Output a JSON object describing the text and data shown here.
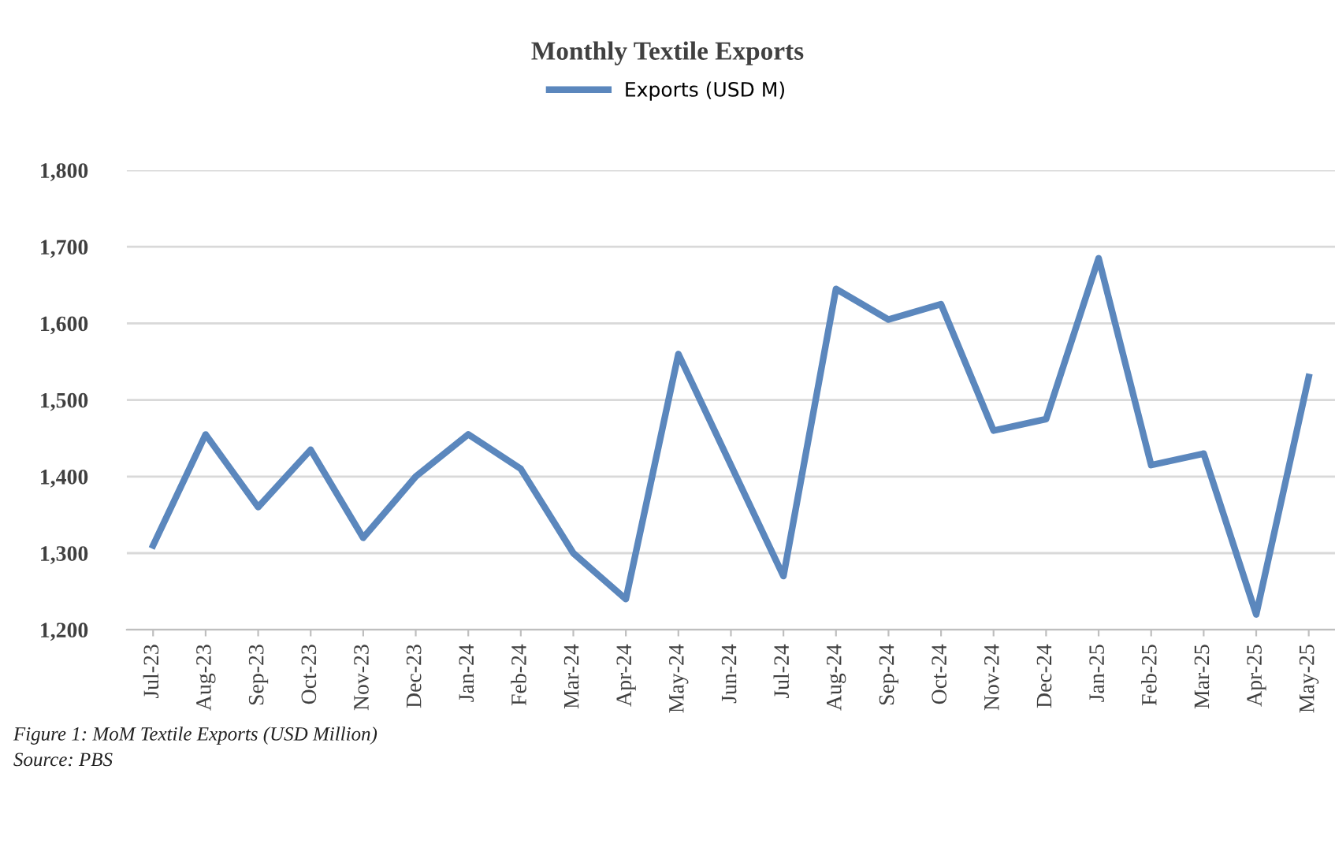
{
  "chart_data": {
    "type": "line",
    "title": "Monthly Textile Exports",
    "categories": [
      "Jul-23",
      "Aug-23",
      "Sep-23",
      "Oct-23",
      "Nov-23",
      "Dec-23",
      "Jan-24",
      "Feb-24",
      "Mar-24",
      "Apr-24",
      "May-24",
      "Jun-24",
      "Jul-24",
      "Aug-24",
      "Sep-24",
      "Oct-24",
      "Nov-24",
      "Dec-24",
      "Jan-25",
      "Feb-25",
      "Mar-25",
      "Apr-25",
      "May-25"
    ],
    "series": [
      {
        "name": "Exports (USD M)",
        "color": "#5b87bd",
        "values": [
          1310,
          1455,
          1360,
          1435,
          1320,
          1400,
          1455,
          1410,
          1300,
          1240,
          1560,
          1415,
          1270,
          1645,
          1605,
          1625,
          1460,
          1475,
          1685,
          1415,
          1430,
          1220,
          1530
        ]
      }
    ],
    "ylim": [
      1200,
      1800
    ],
    "yticks": [
      {
        "value": 1200,
        "label": "1,200"
      },
      {
        "value": 1300,
        "label": "1,300"
      },
      {
        "value": 1400,
        "label": "1,400"
      },
      {
        "value": 1500,
        "label": "1,500"
      },
      {
        "value": 1600,
        "label": "1,600"
      },
      {
        "value": 1700,
        "label": "1,700"
      },
      {
        "value": 1800,
        "label": "1,800"
      }
    ],
    "grid": "y",
    "legend": "top",
    "marker": "none",
    "line_style": "solid",
    "annotations": [
      "Figure 1: MoM Textile Exports (USD Million)",
      "Source: PBS"
    ]
  }
}
